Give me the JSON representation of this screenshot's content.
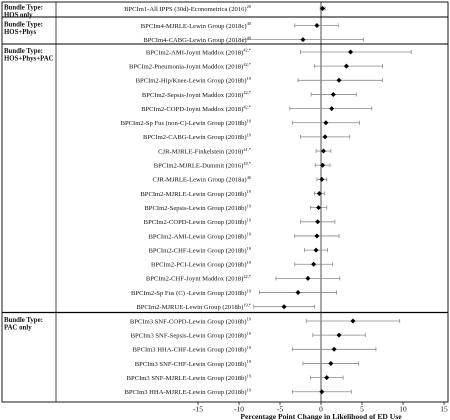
{
  "chart_data": {
    "type": "forest",
    "xlabel": "Percentage Point Change in Likelihood of ED Use",
    "xlim": [
      -15,
      15
    ],
    "xticks": [
      -15,
      -10,
      -5,
      0,
      5,
      10,
      15
    ],
    "reference_line": 0,
    "groups": [
      {
        "label": "Bundle Type:\nHOS only",
        "rows": [
          {
            "label": "BPCIm1-All IPPS (30d)-Econometrica (2016)",
            "ref": "20",
            "estimate": 0.2,
            "lo": -0.1,
            "hi": 0.5
          }
        ]
      },
      {
        "label": "Bundle Type:\nHOS+Phys",
        "rows": [
          {
            "label": "BPCIm4-MJRLE-Lewin Group (2018c)",
            "ref": "40",
            "estimate": -0.5,
            "lo": -3.2,
            "hi": 2.1
          },
          {
            "label": "BPCIm4-CABG-Lewin Group (2018c)",
            "ref": "40",
            "estimate": -2.2,
            "lo": -9.5,
            "hi": 5.2
          }
        ]
      },
      {
        "label": "Bundle Type:\nHOS+Phys+PAC",
        "rows": [
          {
            "label": "BPCIm2-AMI-Joynt Maddox (2018)",
            "ref": "42,*",
            "estimate": 3.6,
            "lo": -2.5,
            "hi": 11.0
          },
          {
            "label": "BPCIm2-Pneumonia-Joynt Maddox (2018)",
            "ref": "42,*",
            "estimate": 3.1,
            "lo": -0.8,
            "hi": 7.5
          },
          {
            "label": "BPCIm2-Hip/Knee-Lewin Group (2018b)",
            "ref": "19",
            "estimate": 2.2,
            "lo": -2.8,
            "hi": 7.5
          },
          {
            "label": "BPCIm2-Sepsis-Joynt Maddox (2018)",
            "ref": "42,*",
            "estimate": 1.5,
            "lo": -1.2,
            "hi": 4.3
          },
          {
            "label": "BPCIm2-COPD-Joynt Maddox (2018)",
            "ref": "42,*",
            "estimate": 1.3,
            "lo": -3.8,
            "hi": 6.2
          },
          {
            "label": "BPCIm2-Sp Fus (non-C)-Lewin Group (2018b)",
            "ref": "19",
            "estimate": 0.6,
            "lo": -3.5,
            "hi": 4.7
          },
          {
            "label": "BPCIm2-CABG-Lewin Group (2018b)",
            "ref": "19",
            "estimate": 0.5,
            "lo": -2.5,
            "hi": 3.5
          },
          {
            "label": "CJR-MJRLE-Finkelstein (2018)",
            "ref": "41,*",
            "estimate": 0.3,
            "lo": -0.6,
            "hi": 1.2
          },
          {
            "label": "BPCIm2-MJRLE-Dummit (2016)",
            "ref": "18,*",
            "estimate": 0.2,
            "lo": -0.7,
            "hi": 1.1
          },
          {
            "label": "CJR-MJRLE-Lewin Group (2018a)",
            "ref": "46",
            "estimate": 0.1,
            "lo": -0.5,
            "hi": 0.7
          },
          {
            "label": "BPCIm2-MJRLE-Lewin Group (2018b)",
            "ref": "19",
            "estimate": -0.2,
            "lo": -0.8,
            "hi": 0.4
          },
          {
            "label": "BPCIm2-Sepsis-Lewin Group (2018b)",
            "ref": "19",
            "estimate": -0.3,
            "lo": -1.3,
            "hi": 0.7
          },
          {
            "label": "BPCIm2-COPD-Lewin Group (2018b)",
            "ref": "19",
            "estimate": -0.4,
            "lo": -2.5,
            "hi": 1.7
          },
          {
            "label": "BPCIm2-AMI-Lewin Group (2018b)",
            "ref": "19",
            "estimate": -0.5,
            "lo": -3.2,
            "hi": 2.2
          },
          {
            "label": "BPCIm2-CHF-Lewin Group (2018b)",
            "ref": "19",
            "estimate": -0.6,
            "lo": -2.0,
            "hi": 0.8
          },
          {
            "label": "BPCIm2-PCI-Lewin Group (2018b)",
            "ref": "19",
            "estimate": -0.9,
            "lo": -3.2,
            "hi": 1.4
          },
          {
            "label": "BPCIm2-CHF-Joynt Maddox (2018)",
            "ref": "42,*",
            "estimate": -1.6,
            "lo": -5.5,
            "hi": 2.3
          },
          {
            "label": "BPCIm2-Sp Fus (C) -Lewin Group (2018b)",
            "ref": "19",
            "estimate": -2.8,
            "lo": -7.5,
            "hi": 1.9
          },
          {
            "label": "BPCIm2-MJRUE-Lewin Group (2018b)",
            "ref": "19,*",
            "estimate": -4.5,
            "lo": -8.2,
            "hi": -0.8
          }
        ]
      },
      {
        "label": "Bundle Type:\nPAC only",
        "rows": [
          {
            "label": "BPCIm3 SNF-COPD-Lewin Group (2018b)",
            "ref": "19",
            "estimate": 3.9,
            "lo": -1.8,
            "hi": 9.6
          },
          {
            "label": "BPCIm3 SNF-Sepsis-Lewin Group (2018b)",
            "ref": "19",
            "estimate": 2.2,
            "lo": -1.0,
            "hi": 5.4
          },
          {
            "label": "BPCIm3 HHA-CHF-Lewin Group (2018b)",
            "ref": "19",
            "estimate": 1.6,
            "lo": -3.5,
            "hi": 6.7
          },
          {
            "label": "BPCIm3 SNF-CHF-Lewin Group (2018b)",
            "ref": "19",
            "estimate": 1.2,
            "lo": -2.2,
            "hi": 4.6
          },
          {
            "label": "BPCIm3 SNF-MJRLE-Lewin Group (2018b)",
            "ref": "19",
            "estimate": 0.7,
            "lo": -1.3,
            "hi": 2.7
          },
          {
            "label": "BPCIm3 HHA-MJRLE-Lewin Group (2018b)",
            "ref": "19",
            "estimate": 0.1,
            "lo": -3.5,
            "hi": 3.7
          }
        ]
      }
    ]
  }
}
